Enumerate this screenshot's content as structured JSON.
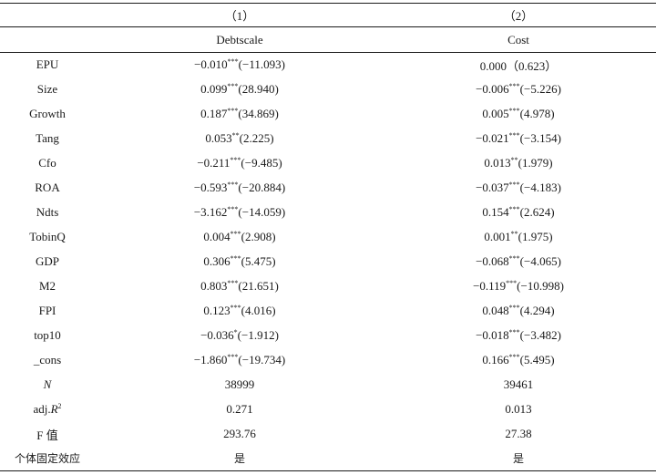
{
  "table": {
    "col_numbers": [
      "（1）",
      "（2）"
    ],
    "col_names": [
      "Debtscale",
      "Cost"
    ],
    "rows": [
      {
        "var": "EPU",
        "c1_coef": "−0.010",
        "c1_star": "***",
        "c1_t": "(−11.093)",
        "c2_coef": "0.000",
        "c2_star": "",
        "c2_t": "（0.623）"
      },
      {
        "var": "Size",
        "c1_coef": "0.099",
        "c1_star": "***",
        "c1_t": "(28.940)",
        "c2_coef": "−0.006",
        "c2_star": "***",
        "c2_t": "(−5.226)"
      },
      {
        "var": "Growth",
        "c1_coef": "0.187",
        "c1_star": "***",
        "c1_t": "(34.869)",
        "c2_coef": "0.005",
        "c2_star": "***",
        "c2_t": "(4.978)"
      },
      {
        "var": "Tang",
        "c1_coef": "0.053",
        "c1_star": "**",
        "c1_t": "(2.225)",
        "c2_coef": "−0.021",
        "c2_star": "***",
        "c2_t": "(−3.154)"
      },
      {
        "var": "Cfo",
        "c1_coef": "−0.211",
        "c1_star": "***",
        "c1_t": "(−9.485)",
        "c2_coef": "0.013",
        "c2_star": "**",
        "c2_t": "(1.979)"
      },
      {
        "var": "ROA",
        "c1_coef": "−0.593",
        "c1_star": "***",
        "c1_t": "(−20.884)",
        "c2_coef": "−0.037",
        "c2_star": "***",
        "c2_t": "(−4.183)"
      },
      {
        "var": "Ndts",
        "c1_coef": "−3.162",
        "c1_star": "***",
        "c1_t": "(−14.059)",
        "c2_coef": "0.154",
        "c2_star": "***",
        "c2_t": "(2.624)"
      },
      {
        "var": "TobinQ",
        "c1_coef": "0.004",
        "c1_star": "***",
        "c1_t": "(2.908)",
        "c2_coef": "0.001",
        "c2_star": "**",
        "c2_t": "(1.975)"
      },
      {
        "var": "GDP",
        "c1_coef": "0.306",
        "c1_star": "***",
        "c1_t": "(5.475)",
        "c2_coef": "−0.068",
        "c2_star": "***",
        "c2_t": "(−4.065)"
      },
      {
        "var": "M2",
        "c1_coef": "0.803",
        "c1_star": "***",
        "c1_t": "(21.651)",
        "c2_coef": "−0.119",
        "c2_star": "***",
        "c2_t": "(−10.998)"
      },
      {
        "var": "FPI",
        "c1_coef": "0.123",
        "c1_star": "***",
        "c1_t": "(4.016)",
        "c2_coef": "0.048",
        "c2_star": "***",
        "c2_t": "(4.294)"
      },
      {
        "var": "top10",
        "c1_coef": "−0.036",
        "c1_star": "*",
        "c1_t": "(−1.912)",
        "c2_coef": "−0.018",
        "c2_star": "***",
        "c2_t": "(−3.482)"
      },
      {
        "var": "_cons",
        "c1_coef": "−1.860",
        "c1_star": "***",
        "c1_t": "(−19.734)",
        "c2_coef": "0.166",
        "c2_star": "***",
        "c2_t": "(5.495)"
      }
    ],
    "stats": {
      "n_label": "N",
      "n_values": [
        "38999",
        "39461"
      ],
      "adjr2_label_prefix": "adj.",
      "adjr2_label_r": "R",
      "adjr2_label_sup": "2",
      "adjr2_values": [
        "0.271",
        "0.013"
      ],
      "f_label": "F 值",
      "f_values": [
        "293.76",
        "27.38"
      ],
      "fe_label": "个体固定效应",
      "fe_values": [
        "是",
        "是"
      ]
    }
  }
}
